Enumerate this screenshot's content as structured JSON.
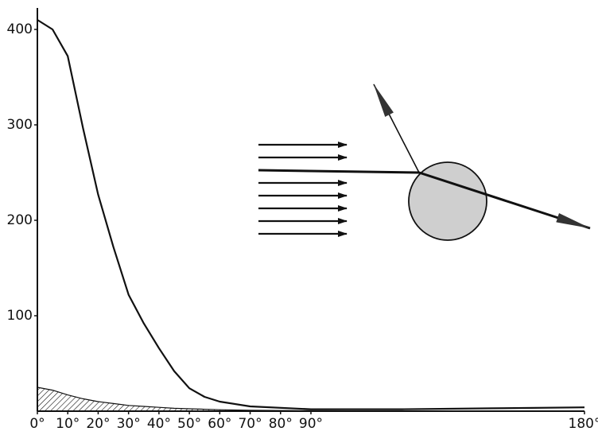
{
  "chart_data": {
    "type": "line",
    "x": [
      0,
      5,
      10,
      15,
      20,
      25,
      30,
      35,
      40,
      45,
      50,
      55,
      60,
      70,
      90,
      120,
      150,
      180
    ],
    "series": [
      {
        "color": "#111111",
        "values": [
          410,
          400,
          372,
          297,
          227,
          172,
          122,
          92,
          66,
          42,
          24,
          15,
          10,
          5,
          2,
          2,
          3,
          4
        ]
      },
      {
        "color": "#111111",
        "fill": "hatch",
        "values": [
          25,
          22,
          17,
          13,
          10,
          8,
          6,
          5,
          4,
          3,
          2.5,
          2,
          1.5,
          1,
          0.5,
          0,
          0,
          0
        ]
      }
    ],
    "xlim": [
      0,
      180
    ],
    "ylim": [
      0,
      420
    ],
    "xticks": [
      {
        "value": 0,
        "label": "0°"
      },
      {
        "value": 10,
        "label": "10°"
      },
      {
        "value": 20,
        "label": "20°"
      },
      {
        "value": 30,
        "label": "30°"
      },
      {
        "value": 40,
        "label": "40°"
      },
      {
        "value": 50,
        "label": "50°"
      },
      {
        "value": 60,
        "label": "60°"
      },
      {
        "value": 70,
        "label": "70°"
      },
      {
        "value": 80,
        "label": "80°"
      },
      {
        "value": 90,
        "label": "90°"
      },
      {
        "value": 180,
        "label": "180°"
      }
    ],
    "yticks": [
      100,
      200,
      300,
      400
    ]
  }
}
